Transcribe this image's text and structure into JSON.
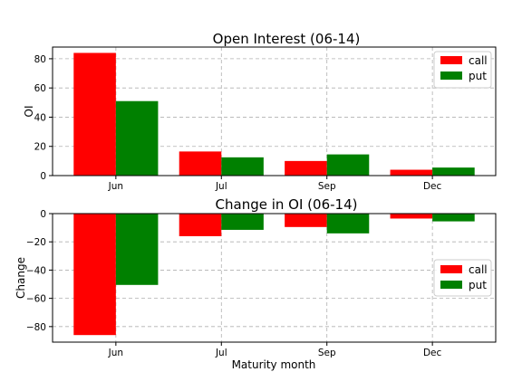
{
  "chart_data": [
    {
      "type": "bar",
      "title": "Open Interest (06-14)",
      "xlabel": "",
      "ylabel": "OI",
      "categories": [
        "Jun",
        "Jul",
        "Sep",
        "Dec"
      ],
      "series": [
        {
          "name": "call",
          "values": [
            84,
            16.5,
            10,
            4
          ],
          "color": "#ff0000"
        },
        {
          "name": "put",
          "values": [
            51,
            12.5,
            14.5,
            5.5
          ],
          "color": "#008000"
        }
      ],
      "ylim": [
        0,
        88
      ],
      "yticks": [
        0,
        20,
        40,
        60,
        80
      ],
      "ytick_labels": [
        "0",
        "20",
        "40",
        "60",
        "80"
      ],
      "grid": true,
      "legend": "top-right"
    },
    {
      "type": "bar",
      "title": "Change in OI (06-14)",
      "xlabel": "Maturity month",
      "ylabel": "Change",
      "categories": [
        "Jun",
        "Jul",
        "Sep",
        "Dec"
      ],
      "series": [
        {
          "name": "call",
          "values": [
            -86,
            -16,
            -9.5,
            -3.5
          ],
          "color": "#ff0000"
        },
        {
          "name": "put",
          "values": [
            -50.5,
            -11.5,
            -14,
            -5.5
          ],
          "color": "#008000"
        }
      ],
      "ylim": [
        -91,
        0
      ],
      "yticks": [
        0,
        -20,
        -40,
        -60,
        -80
      ],
      "ytick_labels": [
        "0",
        "−20",
        "−40",
        "−60",
        "−80"
      ],
      "grid": true,
      "legend": "center-right"
    }
  ]
}
